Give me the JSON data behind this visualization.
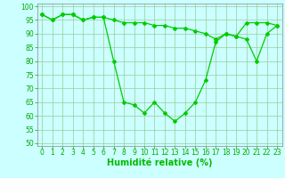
{
  "x": [
    0,
    1,
    2,
    3,
    4,
    5,
    6,
    7,
    8,
    9,
    10,
    11,
    12,
    13,
    14,
    15,
    16,
    17,
    18,
    19,
    20,
    21,
    22,
    23
  ],
  "line1": [
    97,
    95,
    97,
    97,
    95,
    96,
    96,
    80,
    65,
    64,
    61,
    65,
    61,
    58,
    61,
    65,
    73,
    87,
    90,
    89,
    88,
    80,
    90,
    93
  ],
  "line2": [
    97,
    95,
    97,
    97,
    95,
    96,
    96,
    95,
    94,
    94,
    94,
    93,
    93,
    92,
    92,
    91,
    90,
    88,
    90,
    89,
    94,
    94,
    94,
    93
  ],
  "line_color": "#00cc00",
  "bg_color": "#ccffff",
  "grid_color": "#99cc99",
  "xlabel": "Humidité relative (%)",
  "xlabel_color": "#00bb00",
  "xlabel_fontsize": 7,
  "tick_color": "#00aa00",
  "tick_fontsize": 5.5,
  "ylim": [
    49,
    101
  ],
  "xlim": [
    -0.5,
    23.5
  ],
  "yticks": [
    50,
    55,
    60,
    65,
    70,
    75,
    80,
    85,
    90,
    95,
    100
  ],
  "xticks": [
    0,
    1,
    2,
    3,
    4,
    5,
    6,
    7,
    8,
    9,
    10,
    11,
    12,
    13,
    14,
    15,
    16,
    17,
    18,
    19,
    20,
    21,
    22,
    23
  ]
}
